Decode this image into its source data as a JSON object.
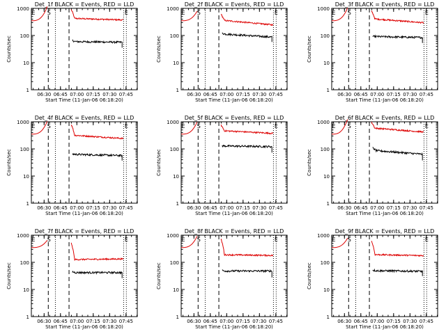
{
  "chart_data": {
    "type": "line",
    "y_scale": "log",
    "ylim": [
      1,
      1000
    ],
    "y_ticks": [
      "1",
      "10",
      "100",
      "1000"
    ],
    "ylabel": "Counts/sec",
    "xlabel": "Start Time (11-Jan-06 06:18:20)",
    "x_ticks": [
      "06:30",
      "06:45",
      "07:00",
      "07:15",
      "07:30",
      "07:45"
    ],
    "marker_S": "S",
    "marker_E": "E",
    "legend_note": "BLACK = Events, RED = LLD",
    "colors": {
      "events": "#000000",
      "lld": "#dd0000"
    },
    "panels": [
      {
        "title": "Det_1f BLACK = Events, RED = LLD",
        "lld_level": 400,
        "events_level": 58,
        "lld_start": 900,
        "events_start": 65,
        "lld_trend": -0.12,
        "events_trend": -0.05
      },
      {
        "title": "Det_2f BLACK = Events, RED = LLD",
        "lld_level": 300,
        "events_level": 100,
        "lld_start": 600,
        "events_start": 120,
        "lld_trend": -0.35,
        "events_trend": -0.25
      },
      {
        "title": "Det_3f BLACK = Events, RED = LLD",
        "lld_level": 350,
        "events_level": 88,
        "lld_start": 800,
        "events_start": 92,
        "lld_trend": -0.3,
        "events_trend": -0.08
      },
      {
        "title": "Det_4f BLACK = Events, RED = LLD",
        "lld_level": 280,
        "events_level": 60,
        "lld_start": 800,
        "events_start": 65,
        "lld_trend": -0.25,
        "events_trend": -0.1
      },
      {
        "title": "Det_5f BLACK = Events, RED = LLD",
        "lld_level": 420,
        "events_level": 125,
        "lld_start": 750,
        "events_start": 130,
        "lld_trend": -0.2,
        "events_trend": -0.05
      },
      {
        "title": "Det_6f BLACK = Events, RED = LLD",
        "lld_level": 500,
        "events_level": 75,
        "lld_start": 950,
        "events_start": 110,
        "lld_trend": -0.3,
        "events_trend": -0.3
      },
      {
        "title": "Det_7f BLACK = Events, RED = LLD",
        "lld_level": 130,
        "events_level": 42,
        "lld_start": 500,
        "events_start": 45,
        "lld_trend": 0.05,
        "events_trend": 0.0
      },
      {
        "title": "Det_8f BLACK = Events, RED = LLD",
        "lld_level": 185,
        "events_level": 48,
        "lld_start": 700,
        "events_start": 50,
        "lld_trend": -0.05,
        "events_trend": 0.0
      },
      {
        "title": "Det_9f BLACK = Events, RED = LLD",
        "lld_level": 185,
        "events_level": 48,
        "lld_start": 600,
        "events_start": 52,
        "lld_trend": -0.08,
        "events_trend": -0.05
      }
    ]
  }
}
